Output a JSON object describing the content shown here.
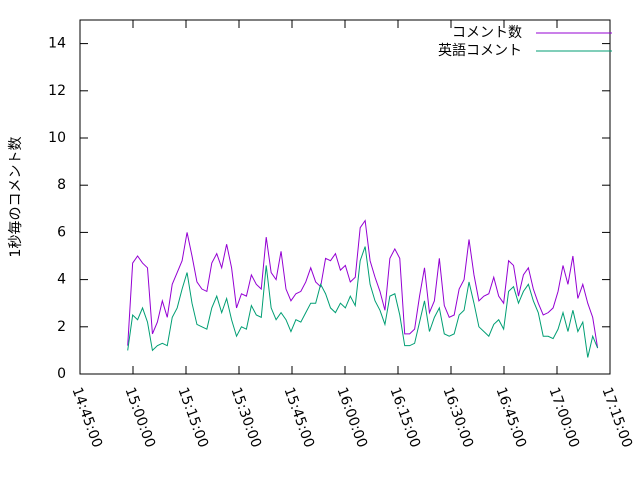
{
  "chart_data": {
    "type": "line",
    "ylabel": "1秒毎のコメント数",
    "x": [
      "14:58:30",
      "14:59:54",
      "15:01:18",
      "15:02:42",
      "15:04:06",
      "15:05:30",
      "15:06:54",
      "15:08:18",
      "15:09:42",
      "15:11:06",
      "15:12:30",
      "15:13:54",
      "15:15:18",
      "15:16:42",
      "15:18:06",
      "15:19:30",
      "15:20:54",
      "15:22:18",
      "15:23:42",
      "15:25:06",
      "15:26:30",
      "15:27:54",
      "15:29:18",
      "15:30:42",
      "15:32:06",
      "15:33:30",
      "15:34:54",
      "15:36:18",
      "15:37:42",
      "15:39:06",
      "15:40:30",
      "15:41:54",
      "15:43:18",
      "15:44:42",
      "15:46:06",
      "15:47:30",
      "15:48:54",
      "15:50:18",
      "15:51:42",
      "15:53:06",
      "15:54:30",
      "15:55:54",
      "15:57:18",
      "15:58:42",
      "16:00:06",
      "16:01:30",
      "16:02:54",
      "16:04:18",
      "16:05:42",
      "16:07:06",
      "16:08:30",
      "16:09:54",
      "16:11:18",
      "16:12:42",
      "16:14:06",
      "16:15:30",
      "16:16:54",
      "16:18:18",
      "16:19:42",
      "16:21:06",
      "16:22:30",
      "16:23:54",
      "16:25:18",
      "16:26:42",
      "16:28:06",
      "16:29:30",
      "16:30:54",
      "16:32:18",
      "16:33:42",
      "16:35:06",
      "16:36:30",
      "16:37:54",
      "16:39:18",
      "16:40:42",
      "16:42:06",
      "16:43:30",
      "16:44:54",
      "16:46:18",
      "16:47:42",
      "16:49:06",
      "16:50:30",
      "16:51:54",
      "16:53:18",
      "16:54:42",
      "16:56:06",
      "16:57:30",
      "16:58:54",
      "17:00:18",
      "17:01:42",
      "17:03:06",
      "17:04:30",
      "17:05:54",
      "17:07:18",
      "17:08:42",
      "17:10:06",
      "17:11:30"
    ],
    "series": [
      {
        "name": "コメント数",
        "color": "#9400d3",
        "values": [
          1.2,
          4.7,
          5.0,
          4.7,
          4.5,
          1.7,
          2.2,
          3.1,
          2.4,
          3.8,
          4.3,
          4.8,
          6.0,
          5.0,
          3.9,
          3.6,
          3.5,
          4.7,
          5.1,
          4.5,
          5.5,
          4.5,
          2.8,
          3.4,
          3.3,
          4.2,
          3.8,
          3.6,
          5.8,
          4.3,
          4.0,
          5.2,
          3.6,
          3.1,
          3.4,
          3.5,
          3.9,
          4.5,
          3.9,
          3.7,
          4.9,
          4.8,
          5.1,
          4.4,
          4.6,
          3.9,
          4.1,
          6.2,
          6.5,
          4.8,
          4.1,
          3.5,
          2.7,
          4.9,
          5.3,
          4.9,
          1.7,
          1.7,
          1.9,
          3.3,
          4.5,
          2.6,
          3.1,
          4.9,
          2.9,
          2.4,
          2.5,
          3.6,
          4.0,
          5.7,
          4.2,
          3.1,
          3.3,
          3.4,
          4.1,
          3.3,
          3.0,
          4.8,
          4.6,
          3.3,
          4.2,
          4.5,
          3.6,
          3.0,
          2.5,
          2.6,
          2.8,
          3.5,
          4.6,
          3.8,
          5.0,
          3.2,
          3.8,
          3.0,
          2.4,
          1.1
        ]
      },
      {
        "name": "英語コメント",
        "color": "#009e73",
        "values": [
          1.0,
          2.5,
          2.3,
          2.8,
          2.2,
          1.0,
          1.2,
          1.3,
          1.2,
          2.4,
          2.8,
          3.6,
          4.3,
          3.0,
          2.1,
          2.0,
          1.9,
          2.8,
          3.3,
          2.6,
          3.2,
          2.3,
          1.6,
          2.0,
          1.9,
          2.9,
          2.5,
          2.4,
          4.6,
          2.8,
          2.3,
          2.6,
          2.3,
          1.8,
          2.3,
          2.2,
          2.6,
          3.0,
          3.0,
          3.8,
          3.4,
          2.8,
          2.6,
          3.0,
          2.8,
          3.3,
          2.9,
          4.8,
          5.4,
          3.8,
          3.1,
          2.7,
          2.1,
          3.3,
          3.4,
          2.5,
          1.2,
          1.2,
          1.3,
          2.2,
          3.1,
          1.8,
          2.4,
          2.8,
          1.7,
          1.6,
          1.7,
          2.5,
          2.7,
          3.9,
          3.0,
          2.0,
          1.8,
          1.6,
          2.1,
          2.3,
          1.9,
          3.5,
          3.7,
          3.0,
          3.5,
          3.8,
          3.1,
          2.6,
          1.6,
          1.6,
          1.5,
          1.9,
          2.6,
          1.8,
          2.7,
          1.8,
          2.2,
          0.7,
          1.6,
          1.1
        ]
      }
    ],
    "xlim": [
      "14:45:00",
      "17:15:00"
    ],
    "xticks": [
      "14:45:00",
      "15:00:00",
      "15:15:00",
      "15:30:00",
      "15:45:00",
      "16:00:00",
      "16:15:00",
      "16:30:00",
      "16:45:00",
      "17:00:00",
      "17:15:00"
    ],
    "ylim": [
      0,
      15
    ],
    "yticks": [
      0,
      2,
      4,
      6,
      8,
      10,
      12,
      14
    ],
    "legend": "top-right"
  }
}
